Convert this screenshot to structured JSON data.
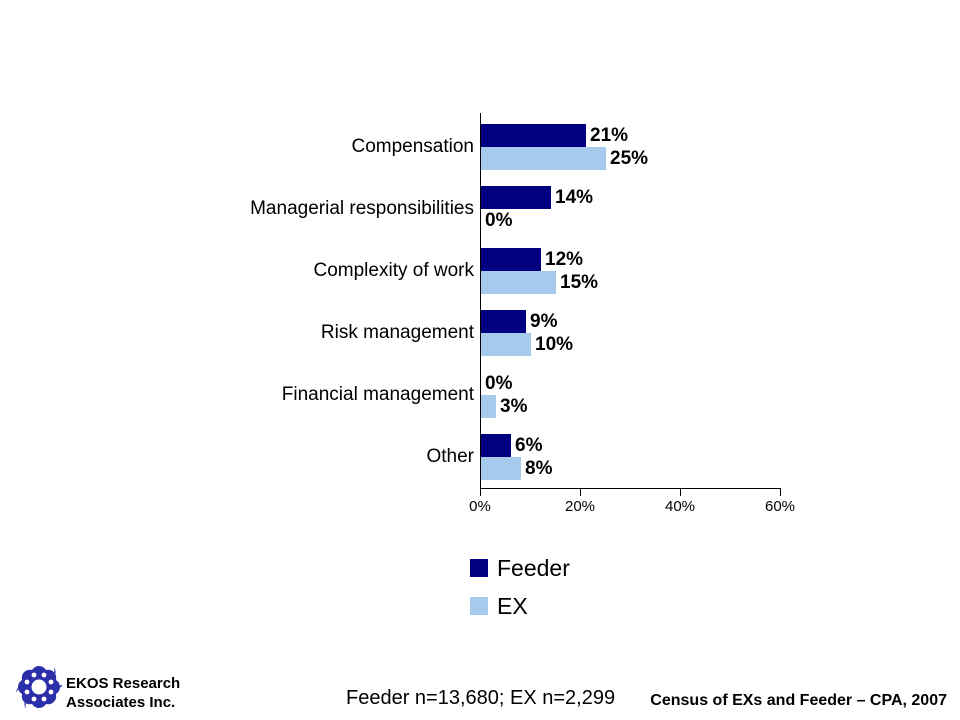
{
  "chart_data": {
    "type": "bar",
    "orientation": "horizontal",
    "categories": [
      "Compensation",
      "Managerial responsibilities",
      "Complexity of work",
      "Risk management",
      "Financial management",
      "Other"
    ],
    "series": [
      {
        "name": "Feeder",
        "color": "#000080",
        "values": [
          21,
          14,
          12,
          9,
          0,
          6
        ]
      },
      {
        "name": "EX",
        "color": "#A6CAEC",
        "values": [
          25,
          0,
          15,
          10,
          3,
          8
        ]
      }
    ],
    "value_suffix": "%",
    "xlim": [
      0,
      60
    ],
    "x_ticks": [
      "0%",
      "20%",
      "40%",
      "60%"
    ],
    "grid": false,
    "legend_position": "bottom",
    "data_labels": true
  },
  "footer": {
    "org_line1": "EKOS Research",
    "org_line2": "Associates Inc.",
    "sample_note": "Feeder n=13,680; EX n=2,299",
    "source_note": "Census of EXs and Feeder – CPA, 2007",
    "logo_color": "#2B2FA8"
  }
}
